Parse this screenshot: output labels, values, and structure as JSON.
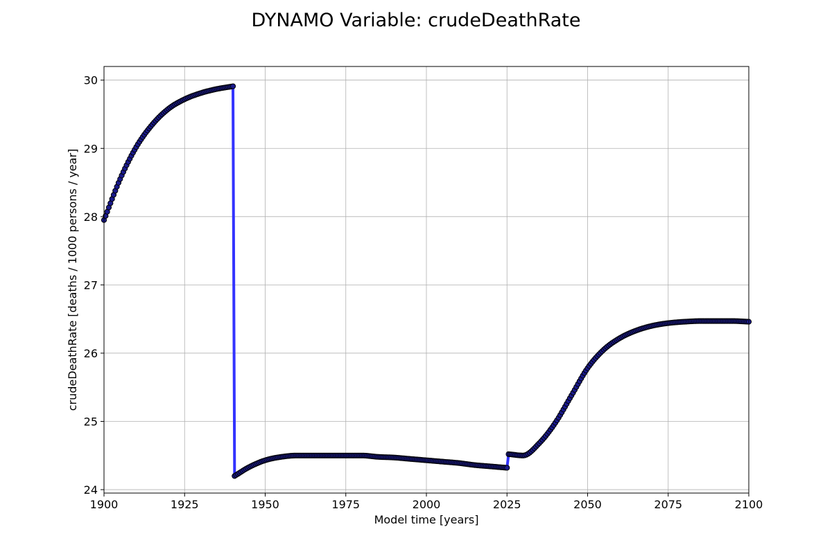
{
  "chart_data": {
    "type": "line",
    "title": "DYNAMO Variable: crudeDeathRate",
    "xlabel": "Model time [years]",
    "ylabel": "crudeDeathRate [deaths / 1000 persons / year]",
    "xlim": [
      1900,
      2100
    ],
    "ylim": [
      23.95,
      30.2
    ],
    "xticks": [
      1900,
      1925,
      1950,
      1975,
      2000,
      2025,
      2050,
      2075,
      2100
    ],
    "yticks": [
      24,
      25,
      26,
      27,
      28,
      29,
      30
    ],
    "grid": true,
    "legend": "none",
    "line_color": "#3333ff",
    "marker_face_color": "#1a1a8c",
    "marker_edge_color": "#000000",
    "series": [
      {
        "x": [
          1900,
          1905,
          1910,
          1915,
          1920,
          1925,
          1930,
          1935,
          1940,
          1940.5,
          1945,
          1950,
          1955,
          1960,
          1965,
          1970,
          1975,
          1980,
          1985,
          1990,
          1995,
          2000,
          2005,
          2010,
          2015,
          2020,
          2025,
          2025.5,
          2030,
          2035,
          2040,
          2045,
          2050,
          2055,
          2060,
          2065,
          2070,
          2075,
          2080,
          2085,
          2090,
          2095,
          2100
        ],
        "values": [
          27.95,
          28.55,
          29.02,
          29.35,
          29.58,
          29.72,
          29.81,
          29.87,
          29.91,
          24.2,
          24.33,
          24.43,
          24.48,
          24.5,
          24.5,
          24.5,
          24.5,
          24.5,
          24.48,
          24.47,
          24.45,
          24.43,
          24.41,
          24.39,
          24.36,
          24.34,
          24.32,
          24.52,
          24.5,
          24.68,
          24.98,
          25.38,
          25.78,
          26.05,
          26.22,
          26.33,
          26.4,
          26.44,
          26.46,
          26.47,
          26.47,
          26.47,
          26.46
        ]
      }
    ]
  }
}
